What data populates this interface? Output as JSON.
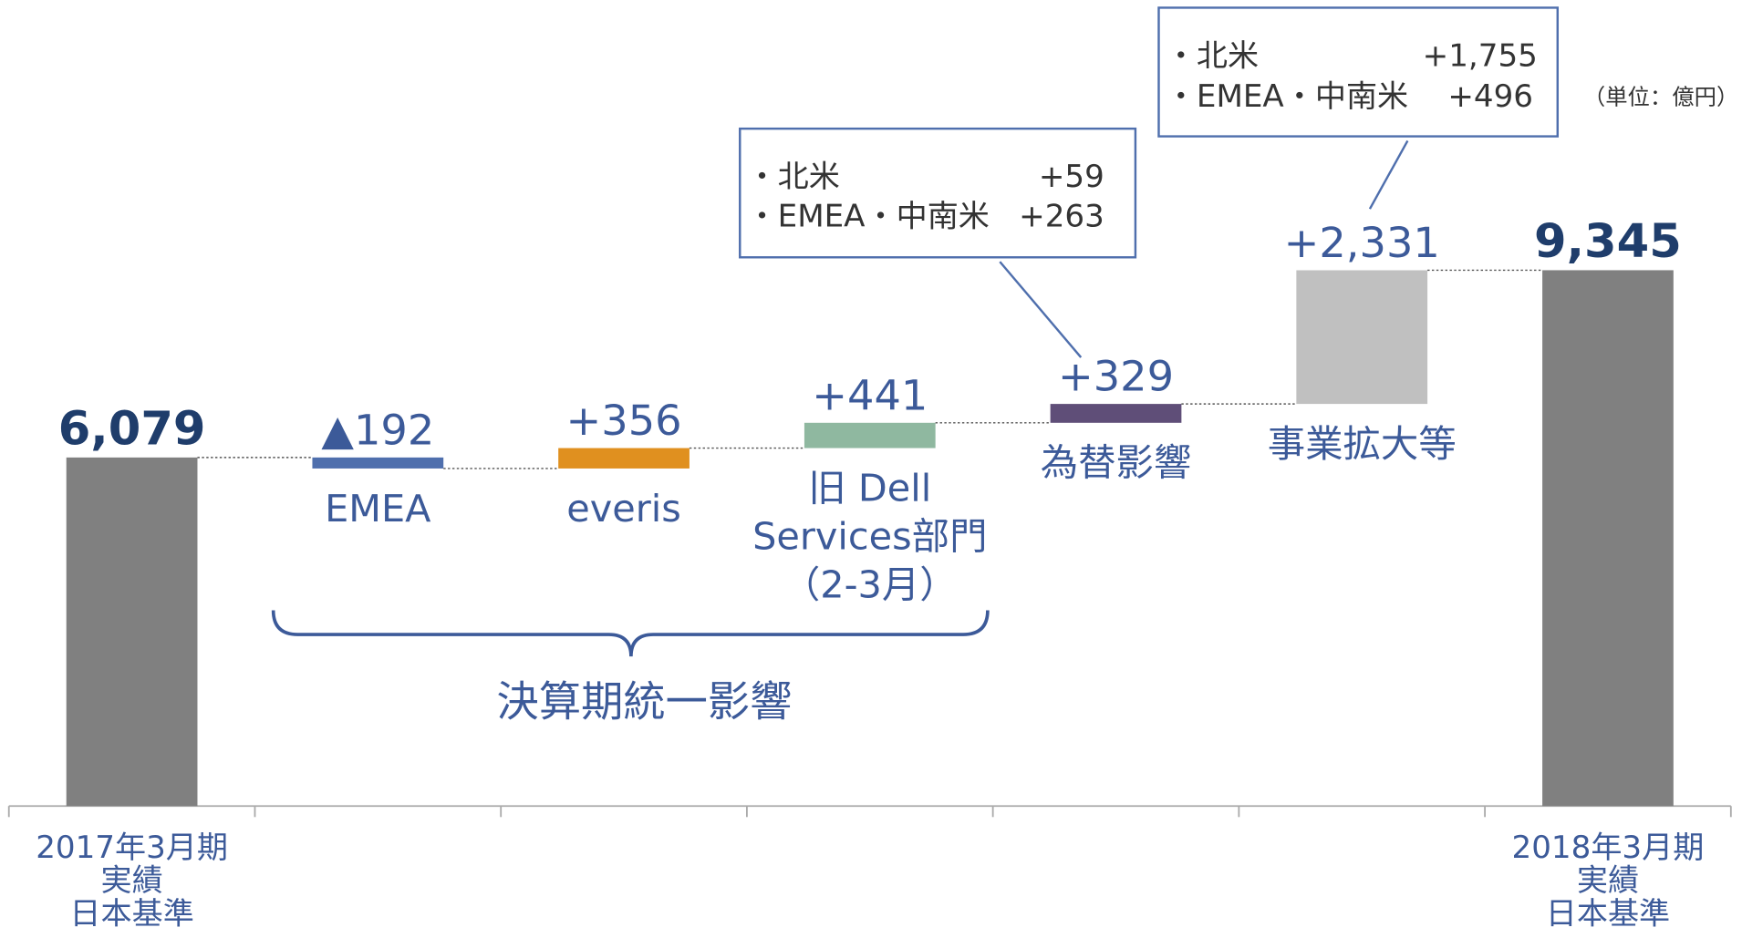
{
  "chart_data": {
    "type": "waterfall",
    "categories": [
      "2017年3月期\n実績\n日本基準",
      "EMEA",
      "everis",
      "旧 Dell\nServices部門\n（2-3月）",
      "為替影響",
      "事業拡大等",
      "2018年3月期\n実績\n日本基準"
    ],
    "values": [
      6079,
      -192,
      356,
      441,
      329,
      2331,
      9345
    ],
    "value_labels": [
      "6,079",
      "▲192",
      "+356",
      "+441",
      "+329",
      "+2,331",
      "9,345"
    ],
    "measure": [
      "total",
      "relative",
      "relative",
      "relative",
      "relative",
      "relative",
      "total"
    ],
    "colors": [
      "#808080",
      "#4f6fad",
      "#e0901f",
      "#8fb8a0",
      "#5f4e78",
      "#c0c0c0",
      "#808080"
    ],
    "ylim": [
      0,
      14000
    ],
    "annotations": {
      "unit": "（単位：億円）",
      "bracket": "決算期統一影響",
      "callouts": [
        {
          "rows": [
            [
              "・北米",
              "+59"
            ],
            [
              "・EMEA・中南米",
              "+263"
            ]
          ]
        },
        {
          "rows": [
            [
              "・北米",
              "+1,755"
            ],
            [
              "・EMEA・中南米",
              "+496"
            ]
          ]
        }
      ]
    }
  }
}
